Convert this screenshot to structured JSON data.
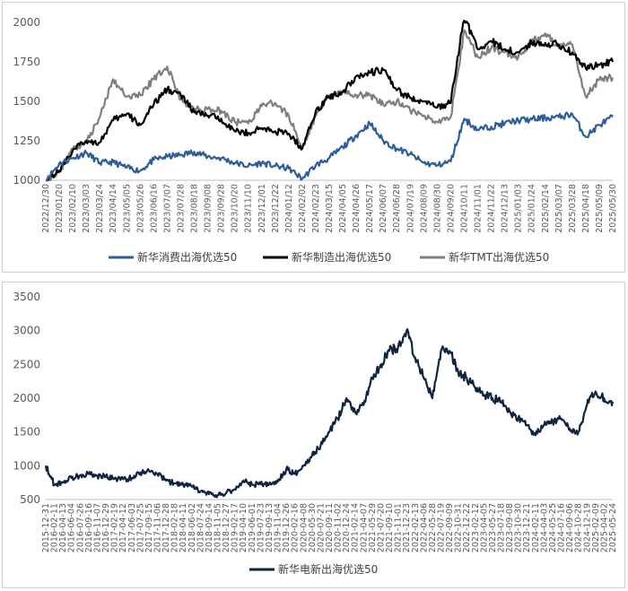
{
  "chart_data": [
    {
      "type": "line",
      "title": "",
      "xlabel": "",
      "ylabel": "",
      "ylim": [
        1000,
        2000
      ],
      "yticks": [
        1000,
        1250,
        1500,
        1750,
        2000
      ],
      "grid": false,
      "legend_position": "bottom",
      "x": [
        "2022/12/30",
        "2023/01/20",
        "2023/02/10",
        "2023/03/03",
        "2023/03/24",
        "2023/04/14",
        "2023/05/05",
        "2023/05/26",
        "2023/06/16",
        "2023/07/07",
        "2023/07/28",
        "2023/08/18",
        "2023/09/08",
        "2023/09/28",
        "2023/10/20",
        "2023/11/10",
        "2023/12/01",
        "2023/12/22",
        "2024/01/12",
        "2024/02/02",
        "2024/02/23",
        "2024/03/15",
        "2024/04/05",
        "2024/04/26",
        "2024/05/17",
        "2024/06/07",
        "2024/06/28",
        "2024/07/19",
        "2024/08/09",
        "2024/08/30",
        "2024/09/20",
        "2024/10/11",
        "2024/11/01",
        "2024/11/22",
        "2024/12/13",
        "2025/01/03",
        "2025/01/24",
        "2025/02/14",
        "2025/03/07",
        "2025/03/28",
        "2025/04/18",
        "2025/05/09",
        "2025/05/30"
      ],
      "series": [
        {
          "name": "新华消费出海优选50",
          "color": "#2e5e9a",
          "values": [
            1000,
            1105,
            1140,
            1175,
            1110,
            1115,
            1080,
            1060,
            1130,
            1150,
            1160,
            1180,
            1150,
            1140,
            1110,
            1090,
            1110,
            1090,
            1075,
            1010,
            1095,
            1140,
            1210,
            1285,
            1360,
            1250,
            1200,
            1165,
            1110,
            1095,
            1120,
            1390,
            1320,
            1340,
            1360,
            1380,
            1385,
            1395,
            1400,
            1420,
            1275,
            1350,
            1400
          ]
        },
        {
          "name": "新华制造出海优选50",
          "color": "#000000",
          "values": [
            1000,
            1060,
            1190,
            1250,
            1240,
            1380,
            1420,
            1350,
            1480,
            1580,
            1540,
            1430,
            1410,
            1390,
            1310,
            1300,
            1330,
            1310,
            1295,
            1200,
            1440,
            1530,
            1560,
            1660,
            1680,
            1700,
            1570,
            1520,
            1500,
            1460,
            1490,
            2040,
            1830,
            1880,
            1830,
            1810,
            1870,
            1870,
            1860,
            1810,
            1710,
            1730,
            1750
          ]
        },
        {
          "name": "新华TMT出海优选50",
          "color": "#7f7f7f",
          "values": [
            1000,
            1050,
            1200,
            1240,
            1400,
            1640,
            1530,
            1540,
            1640,
            1720,
            1510,
            1450,
            1450,
            1440,
            1370,
            1360,
            1470,
            1490,
            1410,
            1200,
            1410,
            1540,
            1560,
            1540,
            1540,
            1480,
            1500,
            1440,
            1410,
            1370,
            1400,
            1950,
            1780,
            1840,
            1810,
            1780,
            1880,
            1930,
            1840,
            1860,
            1530,
            1640,
            1650
          ]
        }
      ]
    },
    {
      "type": "line",
      "title": "",
      "xlabel": "",
      "ylabel": "",
      "ylim": [
        500,
        3500
      ],
      "yticks": [
        500,
        1000,
        1500,
        2000,
        2500,
        3000,
        3500
      ],
      "grid": false,
      "legend_position": "bottom",
      "x": [
        "2015-12-31",
        "2016-02-11",
        "2016-04-13",
        "2016-06-04",
        "2016-07-26",
        "2016-09-16",
        "2016-11-07",
        "2016-12-29",
        "2017-02-19",
        "2017-04-12",
        "2017-06-03",
        "2017-07-25",
        "2017-09-15",
        "2017-11-06",
        "2017-12-28",
        "2018-02-18",
        "2018-04-11",
        "2018-06-02",
        "2018-07-24",
        "2018-09-14",
        "2018-11-05",
        "2018-12-27",
        "2019-02-17",
        "2019-04-10",
        "2019-06-01",
        "2019-07-23",
        "2019-09-13",
        "2019-11-04",
        "2019-12-26",
        "2020-02-16",
        "2020-04-08",
        "2020-05-30",
        "2020-07-21",
        "2020-09-11",
        "2020-11-02",
        "2020-12-24",
        "2021-02-14",
        "2021-04-07",
        "2021-05-29",
        "2021-07-20",
        "2021-09-10",
        "2021-11-01",
        "2021-12-23",
        "2022-02-13",
        "2022-04-06",
        "2022-05-28",
        "2022-07-19",
        "2022-09-09",
        "2022-10-31",
        "2022-12-22",
        "2023-02-12",
        "2023-04-05",
        "2023-05-27",
        "2023-07-18",
        "2023-09-08",
        "2023-10-30",
        "2023-12-21",
        "2024-02-11",
        "2024-04-03",
        "2024-05-25",
        "2024-07-16",
        "2024-09-06",
        "2024-10-28",
        "2024-12-19",
        "2025-02-09",
        "2025-04-02",
        "2025-05-24"
      ],
      "series": [
        {
          "name": "新华电新出海优选50",
          "color": "#0f2440",
          "values": [
            1000,
            720,
            760,
            820,
            860,
            880,
            850,
            840,
            810,
            800,
            820,
            900,
            930,
            880,
            780,
            740,
            720,
            690,
            620,
            580,
            560,
            600,
            650,
            780,
            720,
            730,
            720,
            760,
            950,
            880,
            1000,
            1150,
            1300,
            1500,
            1700,
            2000,
            1800,
            1900,
            2300,
            2500,
            2700,
            2750,
            3000,
            2600,
            2300,
            2000,
            2700,
            2700,
            2400,
            2300,
            2150,
            2050,
            2000,
            1950,
            1800,
            1700,
            1600,
            1450,
            1600,
            1650,
            1700,
            1550,
            1500,
            1900,
            2100,
            2000,
            1950
          ]
        }
      ]
    }
  ]
}
